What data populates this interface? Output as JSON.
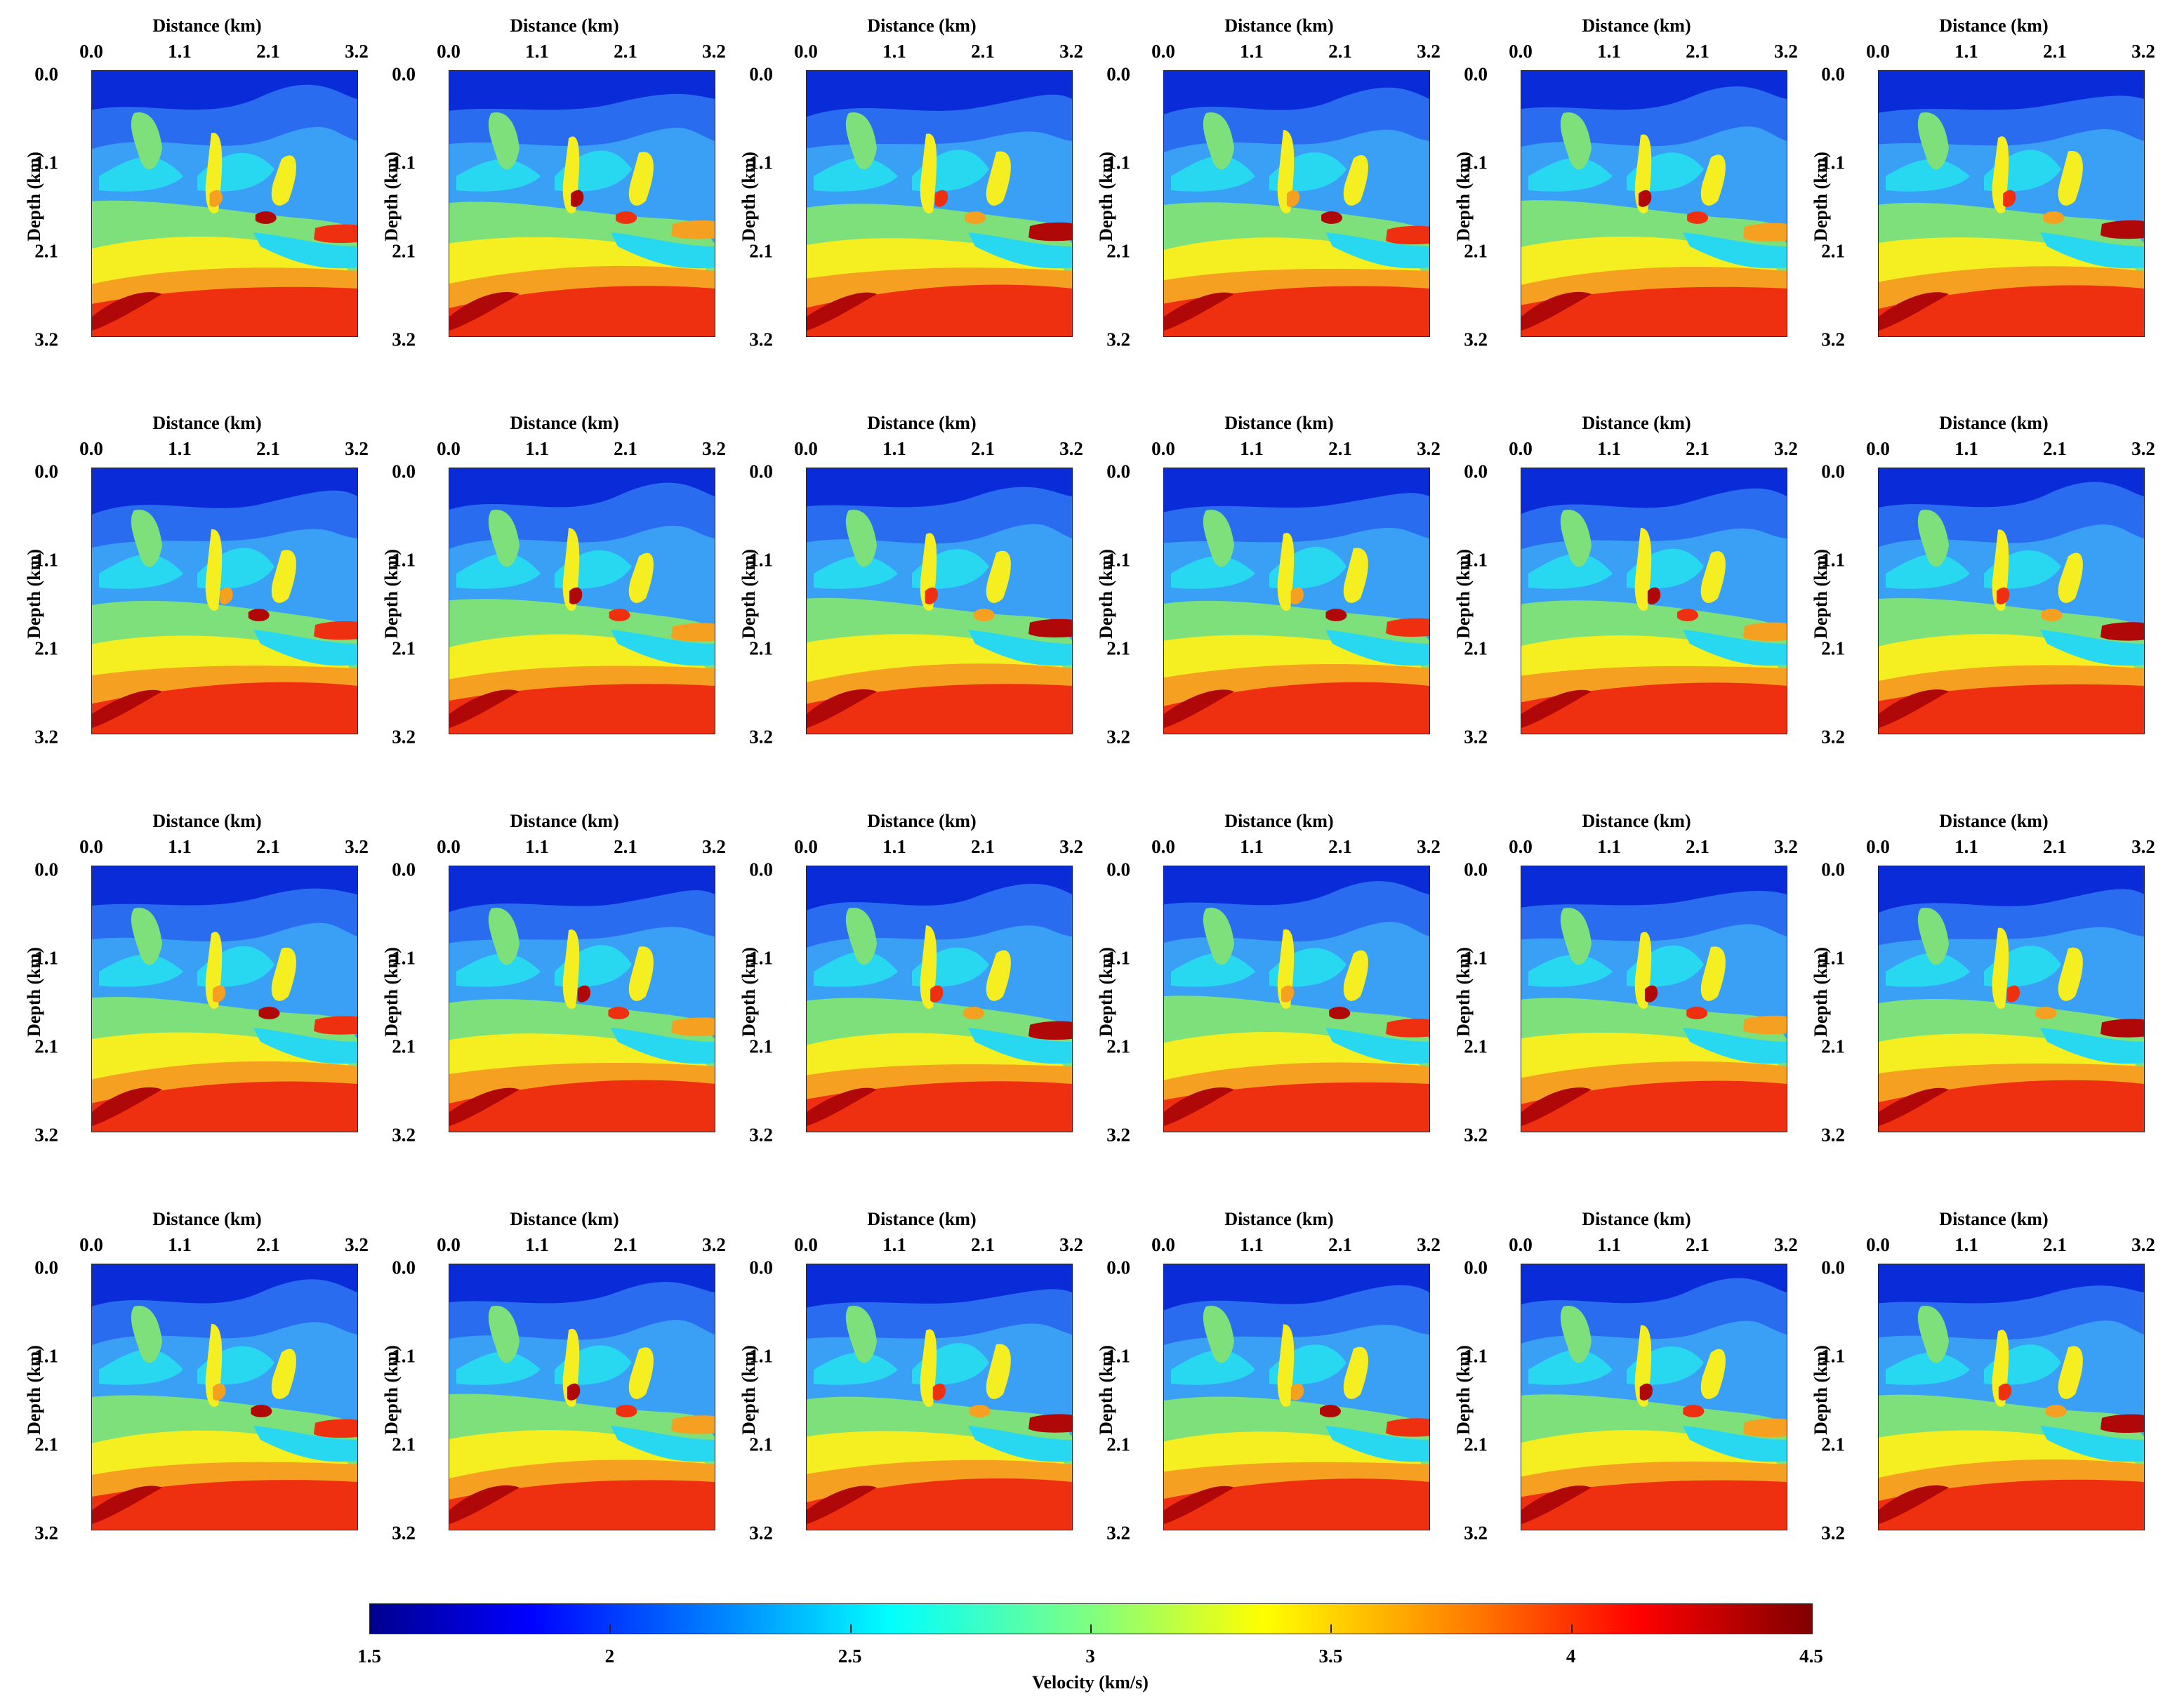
{
  "figure": {
    "panel_count": 24,
    "rows": 4,
    "cols": 6
  },
  "chart_data": {
    "type": "heatmap",
    "panel_count": 24,
    "xlabel": "Distance (km)",
    "ylabel": "Depth (km)",
    "x_ticks": [
      "0.0",
      "1.1",
      "2.1",
      "3.2"
    ],
    "y_ticks": [
      "0.0",
      "1.1",
      "2.1",
      "3.2"
    ],
    "xlim": [
      0.0,
      3.2
    ],
    "ylim": [
      0.0,
      3.2
    ],
    "y_inverted": true,
    "colormap": "jet",
    "colorbar": {
      "label": "Velocity (km/s)",
      "ticks": [
        "1.5",
        "2",
        "2.5",
        "3",
        "3.5",
        "4",
        "4.5"
      ],
      "range": [
        1.5,
        4.5
      ],
      "orientation": "horizontal"
    },
    "colors": {
      "deep_blue": "#0a2cd8",
      "blue": "#2a6cf0",
      "light_blue": "#3aa0f5",
      "cyan": "#28d8f0",
      "green": "#7ee07a",
      "yellow": "#f5ee20",
      "orange": "#f5a020",
      "red": "#ee3010",
      "dark_red": "#b00808"
    }
  }
}
